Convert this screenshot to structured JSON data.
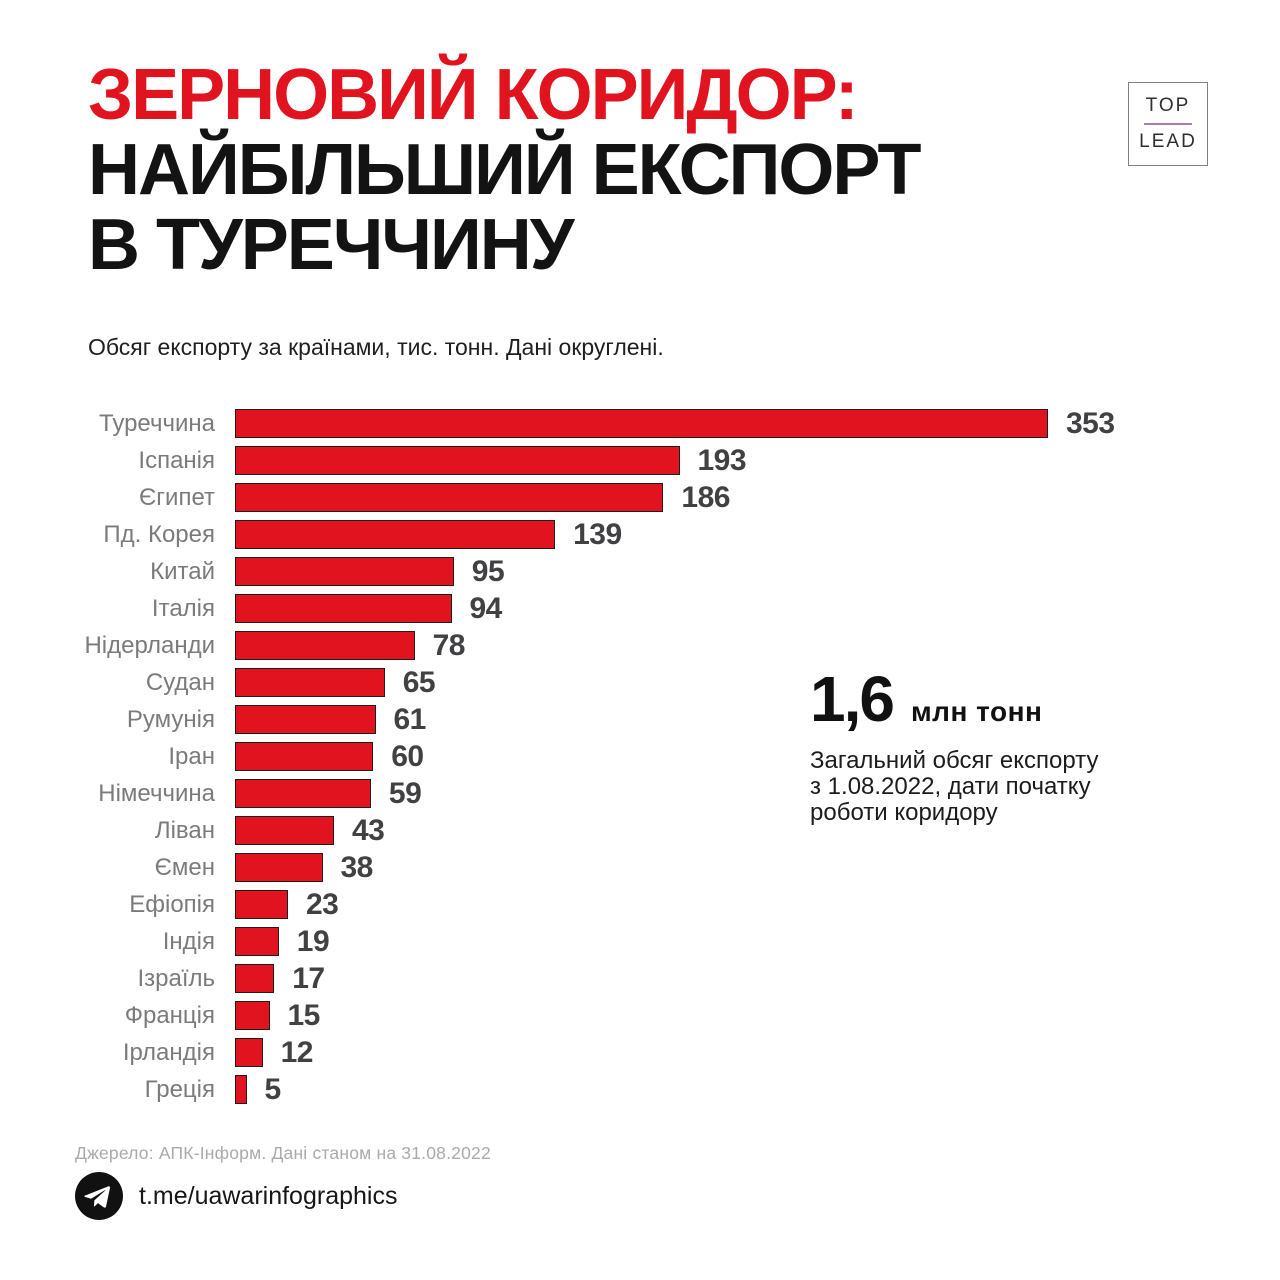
{
  "header": {
    "title_line1": "ЗЕРНОВИЙ КОРИДОР:",
    "title_line2": "НАЙБІЛЬШИЙ ЕКСПОРТ",
    "title_line3": "В ТУРЕЧЧИНУ",
    "subtitle": "Обсяг експорту за країнами, тис. тонн. Дані округлені.",
    "logo": {
      "top": "TOP",
      "lead": "LEAD"
    }
  },
  "chart_data": {
    "type": "bar",
    "orientation": "horizontal",
    "title": "Зерновий коридор: найбільший експорт в Туреччину",
    "xlabel": "",
    "ylabel": "",
    "unit": "тис. тонн",
    "categories": [
      "Туреччина",
      "Іспанія",
      "Єгипет",
      "Пд. Корея",
      "Китай",
      "Італія",
      "Нідерланди",
      "Судан",
      "Румунія",
      "Іран",
      "Німеччина",
      "Ліван",
      "Ємен",
      "Ефіопія",
      "Індія",
      "Ізраїль",
      "Франція",
      "Ірландія",
      "Греція"
    ],
    "values": [
      353,
      193,
      186,
      139,
      95,
      94,
      78,
      65,
      61,
      60,
      59,
      43,
      38,
      23,
      19,
      17,
      15,
      12,
      5
    ],
    "xlim": [
      0,
      380
    ],
    "grid": false,
    "legend": "none",
    "value_labels": true,
    "bar_color": "#e0131f",
    "bar_border_color": "#1e1e1e",
    "value_label_color": "#414144",
    "category_label_color": "#7b7b7e"
  },
  "annotation": {
    "big_number": "1,6",
    "big_unit": "млн тонн",
    "text": "Загальний обсяг експорту\nз 1.08.2022, дати початку\nроботи коридору"
  },
  "footer": {
    "source": "Джерело: АПК-Інформ. Дані станом на 31.08.2022",
    "telegram_handle": "t.me/uawarinfographics"
  },
  "colors": {
    "accent_red": "#e0131f",
    "title_black": "#131313",
    "logo_divider_pink": "#b27bab",
    "source_gray": "#aaaaac",
    "telegram_black": "#111111"
  }
}
